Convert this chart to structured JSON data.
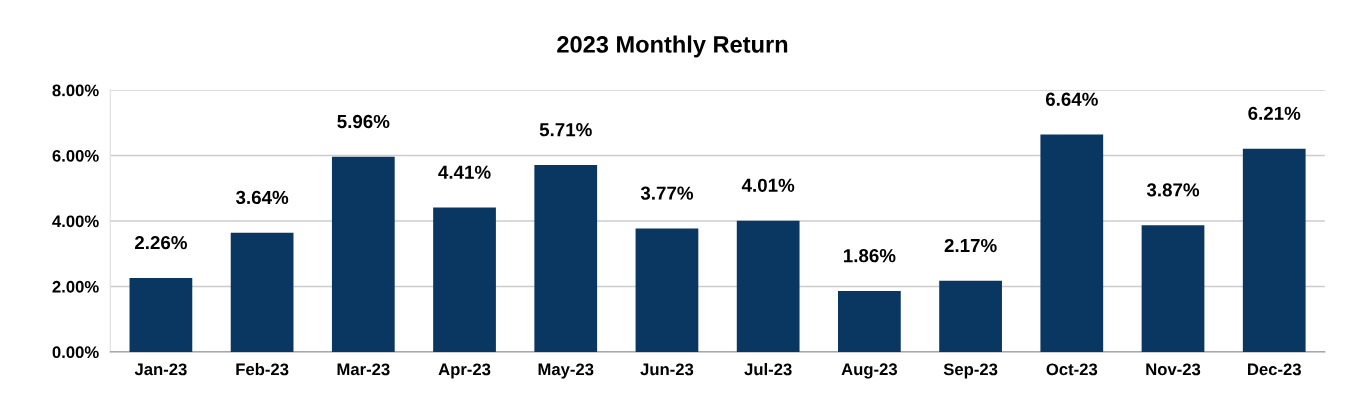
{
  "chart_data": {
    "type": "bar",
    "title": "2023 Monthly Return",
    "categories": [
      "Jan-23",
      "Feb-23",
      "Mar-23",
      "Apr-23",
      "May-23",
      "Jun-23",
      "Jul-23",
      "Aug-23",
      "Sep-23",
      "Oct-23",
      "Nov-23",
      "Dec-23"
    ],
    "series": [
      {
        "color": "#0a3761",
        "values": [
          2.26,
          3.64,
          5.96,
          4.41,
          5.71,
          3.77,
          4.01,
          1.86,
          2.17,
          6.64,
          3.87,
          6.21
        ],
        "value_labels": [
          "2.26%",
          "3.64%",
          "5.96%",
          "4.41%",
          "5.71%",
          "3.77%",
          "4.01%",
          "1.86%",
          "2.17%",
          "6.64%",
          "3.87%",
          "6.21%"
        ]
      }
    ],
    "ylim": [
      0,
      8
    ],
    "yticks": [
      {
        "value": 0,
        "label": "0.00%"
      },
      {
        "value": 2,
        "label": "2.00%"
      },
      {
        "value": 4,
        "label": "4.00%"
      },
      {
        "value": 6,
        "label": "6.00%"
      },
      {
        "value": 8,
        "label": "8.00%"
      }
    ],
    "grid": "y",
    "legend": false
  }
}
